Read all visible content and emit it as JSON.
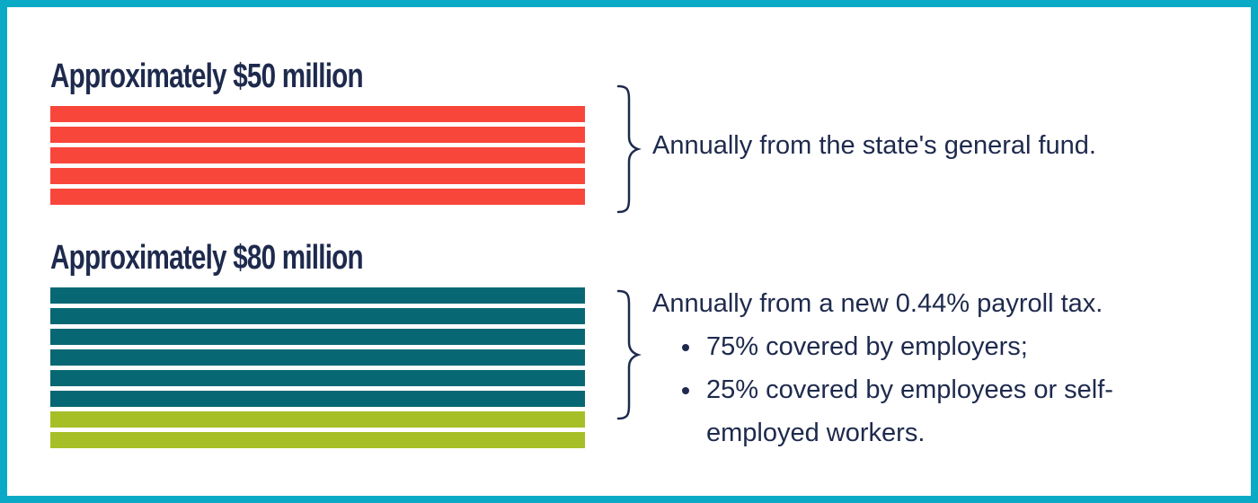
{
  "colors": {
    "frame": "#0aaac6",
    "general_fund": "#f9463b",
    "employer": "#076873",
    "employee": "#a7bf27",
    "text": "#1e2a4d"
  },
  "chart_data": [
    {
      "type": "bar",
      "title": "Approximately $50 million",
      "series": [
        {
          "label": "Annually from the state's general fund.",
          "bar_count": 5,
          "color": "#f9463b"
        }
      ]
    },
    {
      "type": "bar",
      "title": "Approximately $80 million",
      "series": [
        {
          "label": "75% covered by employers;",
          "bar_count": 6,
          "color": "#076873"
        },
        {
          "label": "25% covered by employees or self-employed workers.",
          "bar_count": 2,
          "color": "#a7bf27"
        }
      ],
      "description": "Annually from a new 0.44% payroll tax."
    }
  ],
  "section1": {
    "heading": "Approximately $50 million",
    "description": "Annually from the state's general fund."
  },
  "section2": {
    "heading": "Approximately $80 million",
    "description": "Annually from a new 0.44% payroll tax.",
    "bullets": [
      "75% covered by employers;",
      "25% covered by employees or self-employed workers."
    ]
  }
}
